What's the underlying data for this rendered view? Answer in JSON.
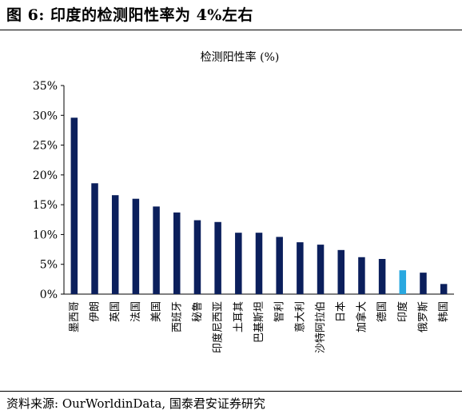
{
  "figure": {
    "title": "图 6: 印度的检测阳性率为 4%左右",
    "source": "资料来源: OurWorldinData, 国泰君安证券研究"
  },
  "colors": {
    "bar": "#0b1f5c",
    "highlight": "#29a8e0",
    "axis": "#000000"
  },
  "chart_data": {
    "type": "bar",
    "title": "检测阳性率 (%)",
    "xlabel": "",
    "ylabel": "",
    "ylim": [
      0,
      35
    ],
    "yticks": [
      0,
      5,
      10,
      15,
      20,
      25,
      30,
      35
    ],
    "ytick_labels": [
      "0%",
      "5%",
      "10%",
      "15%",
      "20%",
      "25%",
      "30%",
      "35%"
    ],
    "grid": false,
    "legend": "none",
    "categories": [
      "墨西哥",
      "伊朗",
      "英国",
      "法国",
      "美国",
      "西班牙",
      "秘鲁",
      "印度尼西亚",
      "土耳其",
      "巴基斯坦",
      "智利",
      "意大利",
      "沙特阿拉伯",
      "日本",
      "加拿大",
      "德国",
      "印度",
      "俄罗斯",
      "韩国"
    ],
    "values": [
      29.6,
      18.6,
      16.6,
      16.0,
      14.7,
      13.7,
      12.4,
      12.1,
      10.3,
      10.3,
      9.6,
      8.7,
      8.3,
      7.4,
      6.2,
      5.9,
      4.0,
      3.6,
      1.7
    ],
    "highlight": "印度"
  }
}
